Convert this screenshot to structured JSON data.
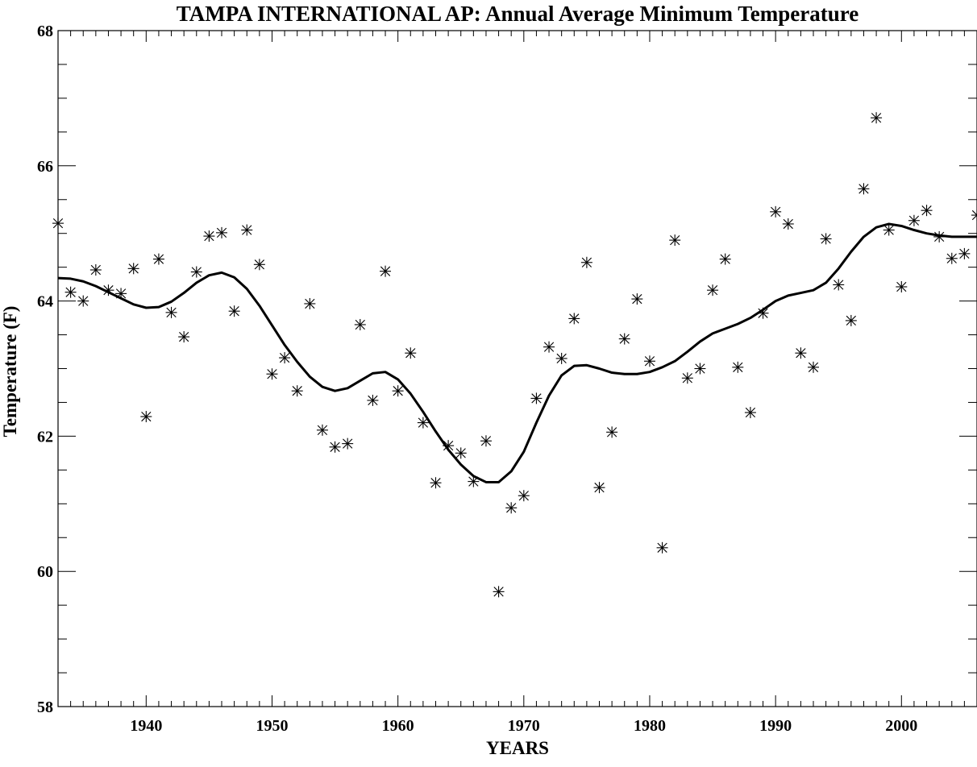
{
  "chart_data": {
    "type": "scatter",
    "title": "TAMPA INTERNATIONAL AP: Annual Average Minimum Temperature",
    "xlabel": "YEARS",
    "ylabel": "Temperature (F)",
    "xlim": [
      1933,
      2006
    ],
    "ylim": [
      58,
      68
    ],
    "x_ticks": [
      1940,
      1950,
      1960,
      1970,
      1980,
      1990,
      2000
    ],
    "y_ticks": [
      58,
      60,
      62,
      64,
      66,
      68
    ],
    "grid": false,
    "legend": "none",
    "series": [
      {
        "style": "asterisk-markers",
        "x": [
          1933,
          1934,
          1935,
          1936,
          1937,
          1938,
          1939,
          1940,
          1941,
          1942,
          1943,
          1944,
          1945,
          1946,
          1947,
          1948,
          1949,
          1950,
          1951,
          1952,
          1953,
          1954,
          1955,
          1956,
          1957,
          1958,
          1959,
          1960,
          1961,
          1962,
          1963,
          1964,
          1965,
          1966,
          1967,
          1968,
          1969,
          1970,
          1971,
          1972,
          1973,
          1974,
          1975,
          1976,
          1977,
          1978,
          1979,
          1980,
          1981,
          1982,
          1983,
          1984,
          1985,
          1986,
          1987,
          1988,
          1989,
          1990,
          1991,
          1992,
          1993,
          1994,
          1995,
          1996,
          1997,
          1998,
          1999,
          2000,
          2001,
          2002,
          2003,
          2004,
          2005,
          2006
        ],
        "values": [
          65.15,
          64.13,
          64.0,
          64.46,
          64.16,
          64.11,
          64.48,
          62.29,
          64.62,
          63.83,
          63.47,
          64.43,
          64.96,
          65.01,
          63.85,
          65.05,
          64.54,
          62.92,
          63.16,
          62.67,
          63.96,
          62.09,
          61.84,
          61.89,
          63.65,
          62.53,
          64.44,
          62.67,
          63.23,
          62.2,
          61.31,
          61.86,
          61.75,
          61.33,
          61.93,
          59.7,
          60.94,
          61.12,
          62.56,
          63.32,
          63.15,
          63.74,
          64.57,
          61.24,
          62.06,
          63.44,
          64.03,
          63.11,
          60.35,
          64.9,
          62.86,
          63.0,
          64.16,
          64.62,
          63.02,
          62.35,
          63.82,
          65.32,
          65.14,
          63.23,
          63.02,
          64.92,
          64.24,
          63.71,
          65.66,
          66.71,
          65.05,
          64.21,
          65.19,
          65.34,
          64.95,
          64.63,
          64.7,
          65.27
        ]
      },
      {
        "style": "smoothed-line",
        "x": [
          1933,
          1934,
          1935,
          1936,
          1937,
          1938,
          1939,
          1940,
          1941,
          1942,
          1943,
          1944,
          1945,
          1946,
          1947,
          1948,
          1949,
          1950,
          1951,
          1952,
          1953,
          1954,
          1955,
          1956,
          1957,
          1958,
          1959,
          1960,
          1961,
          1962,
          1963,
          1964,
          1965,
          1966,
          1967,
          1968,
          1969,
          1970,
          1971,
          1972,
          1973,
          1974,
          1975,
          1976,
          1977,
          1978,
          1979,
          1980,
          1981,
          1982,
          1983,
          1984,
          1985,
          1986,
          1987,
          1988,
          1989,
          1990,
          1991,
          1992,
          1993,
          1994,
          1995,
          1996,
          1997,
          1998,
          1999,
          2000,
          2001,
          2002,
          2003,
          2004,
          2005,
          2006
        ],
        "values": [
          64.34,
          64.33,
          64.29,
          64.22,
          64.13,
          64.04,
          63.95,
          63.9,
          63.91,
          63.99,
          64.12,
          64.27,
          64.38,
          64.42,
          64.35,
          64.18,
          63.93,
          63.64,
          63.35,
          63.1,
          62.88,
          62.73,
          62.67,
          62.71,
          62.82,
          62.93,
          62.95,
          62.84,
          62.63,
          62.36,
          62.07,
          61.8,
          61.58,
          61.41,
          61.32,
          61.32,
          61.48,
          61.77,
          62.2,
          62.6,
          62.9,
          63.04,
          63.05,
          63.0,
          62.94,
          62.92,
          62.92,
          62.95,
          63.02,
          63.11,
          63.25,
          63.4,
          63.52,
          63.59,
          63.66,
          63.75,
          63.87,
          64.0,
          64.08,
          64.12,
          64.16,
          64.27,
          64.48,
          64.73,
          64.95,
          65.09,
          65.14,
          65.11,
          65.05,
          65.0,
          64.97,
          64.95,
          64.95,
          64.95
        ]
      }
    ]
  }
}
